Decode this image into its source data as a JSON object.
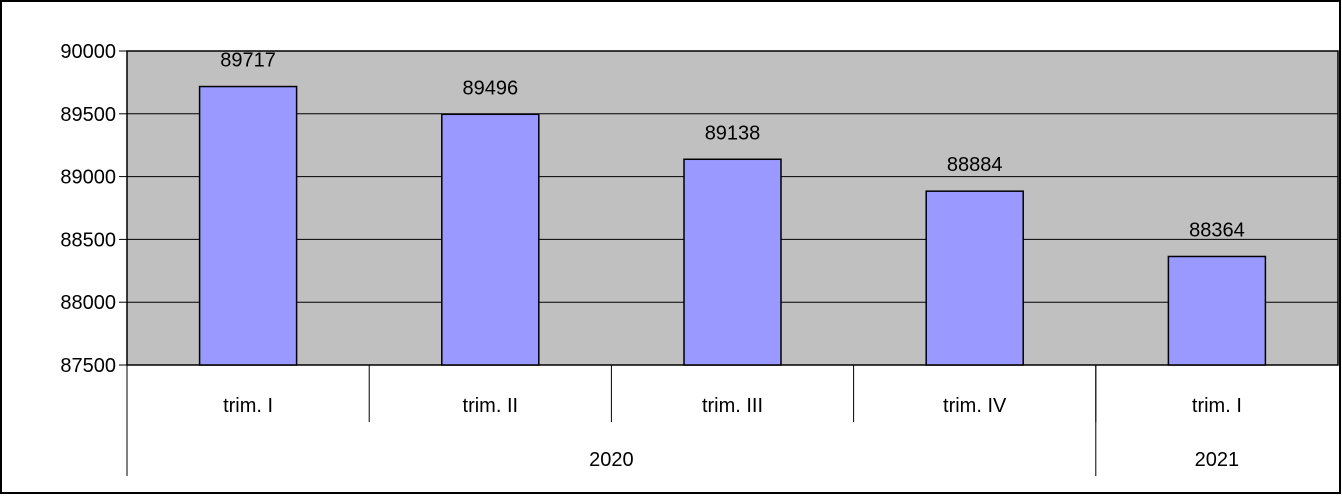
{
  "chart_data": {
    "type": "bar",
    "categories": [
      "trim. I",
      "trim. II",
      "trim. III",
      "trim. IV",
      "trim. I"
    ],
    "groups": [
      {
        "label": "2020",
        "span": 4
      },
      {
        "label": "2021",
        "span": 1
      }
    ],
    "values": [
      89717,
      89496,
      89138,
      88884,
      88364
    ],
    "data_labels": [
      "89717",
      "89496",
      "89138",
      "88884",
      "88364"
    ],
    "ylim": [
      87500,
      90000
    ],
    "yticks": [
      87500,
      88000,
      88500,
      89000,
      89500,
      90000
    ],
    "ytick_labels": [
      "87500",
      "88000",
      "88500",
      "89000",
      "89500",
      "90000"
    ],
    "grid": true,
    "legend": "none",
    "title": "",
    "xlabel": "",
    "ylabel": ""
  },
  "colors": {
    "bar_fill": "#9999ff",
    "plot_background": "#c0c0c0",
    "gridline": "#000000",
    "border": "#000000"
  }
}
